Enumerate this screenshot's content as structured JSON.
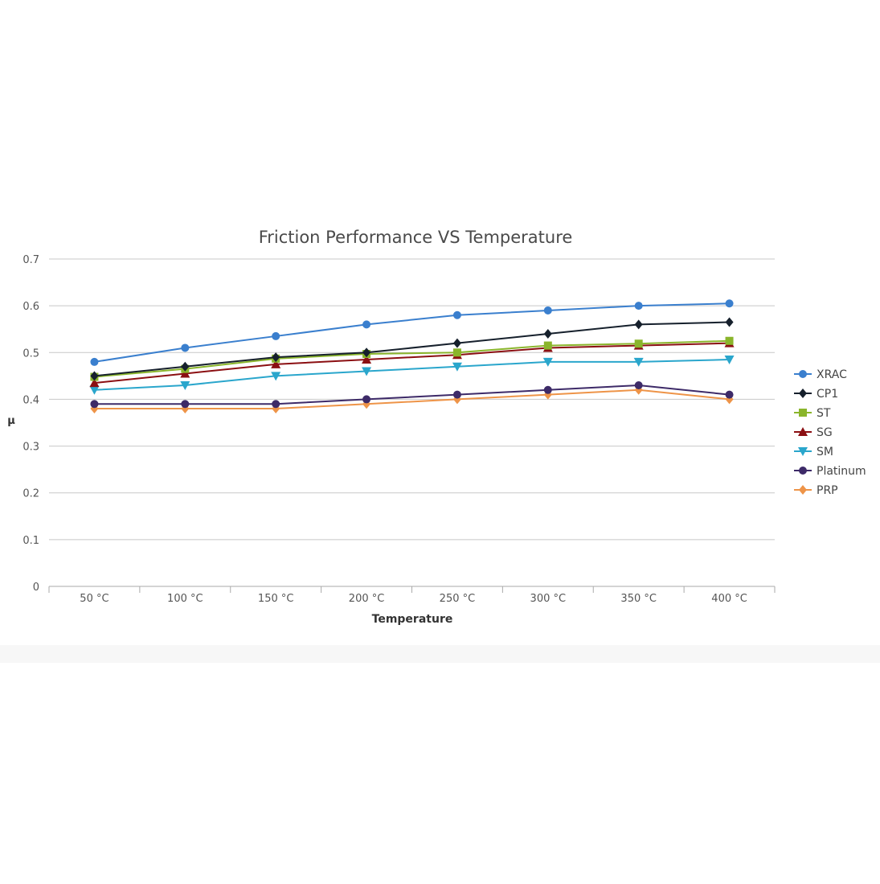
{
  "chart_data": {
    "type": "line",
    "title": "Friction Performance VS Temperature",
    "xlabel": "Temperature",
    "ylabel": "μ",
    "categories": [
      "50 °C",
      "100 °C",
      "150 °C",
      "200 °C",
      "250 °C",
      "300 °C",
      "350 °C",
      "400 °C"
    ],
    "ylim": [
      0,
      0.7
    ],
    "yticks": [
      "0",
      "0.1",
      "0.2",
      "0.3",
      "0.4",
      "0.5",
      "0.6",
      "0.7"
    ],
    "grid": true,
    "legend_position": "right",
    "series": [
      {
        "name": "XRAC",
        "color": "#3a7fce",
        "marker": "circle",
        "values": [
          0.48,
          0.51,
          0.535,
          0.56,
          0.58,
          0.59,
          0.6,
          0.605
        ]
      },
      {
        "name": "CP1",
        "color": "#16202c",
        "marker": "diamond",
        "values": [
          0.45,
          0.47,
          0.49,
          0.5,
          0.52,
          0.54,
          0.56,
          0.565
        ]
      },
      {
        "name": "ST",
        "color": "#8ab52b",
        "marker": "square",
        "values": [
          0.448,
          0.465,
          0.487,
          0.497,
          0.5,
          0.515,
          0.519,
          0.525
        ]
      },
      {
        "name": "SG",
        "color": "#8b0f12",
        "marker": "triangle-up",
        "values": [
          0.435,
          0.455,
          0.475,
          0.485,
          0.495,
          0.51,
          0.515,
          0.52
        ]
      },
      {
        "name": "SM",
        "color": "#2aa6cc",
        "marker": "triangle-down",
        "values": [
          0.42,
          0.43,
          0.45,
          0.46,
          0.47,
          0.48,
          0.48,
          0.485
        ]
      },
      {
        "name": "Platinum",
        "color": "#3d2a68",
        "marker": "circle",
        "values": [
          0.39,
          0.39,
          0.39,
          0.4,
          0.41,
          0.42,
          0.43,
          0.41
        ]
      },
      {
        "name": "PRP",
        "color": "#ee9448",
        "marker": "diamond",
        "values": [
          0.38,
          0.38,
          0.38,
          0.39,
          0.4,
          0.41,
          0.42,
          0.4
        ]
      }
    ]
  }
}
